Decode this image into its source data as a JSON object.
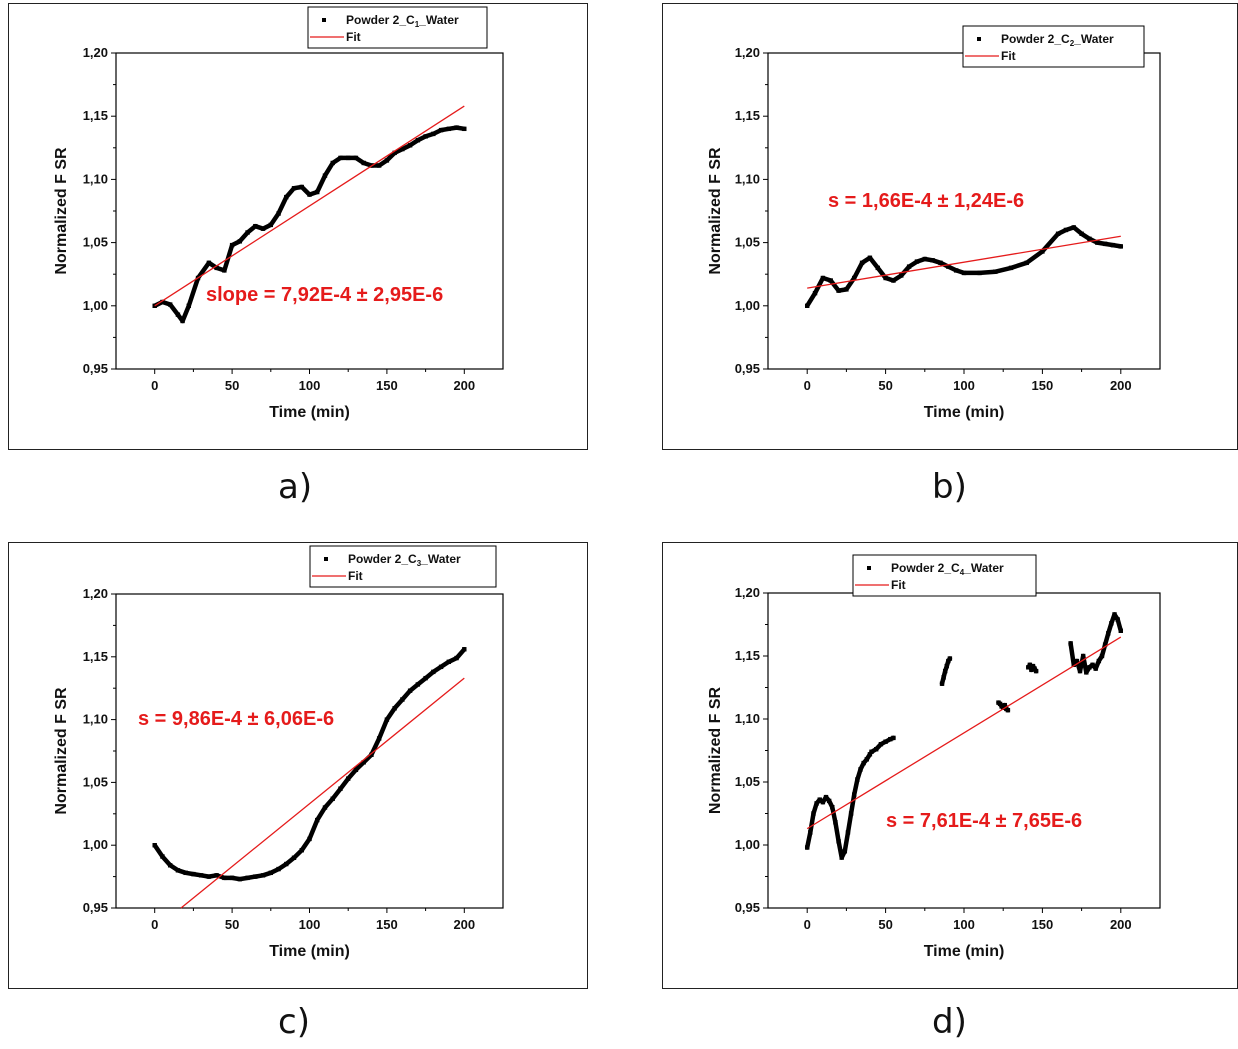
{
  "panel_labels": [
    "a)",
    "b)",
    "c)",
    "d)"
  ],
  "colors": {
    "data": "#000000",
    "fit": "#e51b1b",
    "annotation": "#e51b1b"
  },
  "chart_data": [
    {
      "type": "scatter",
      "xlabel": "Time (min)",
      "ylabel": "Normalized F SR",
      "xlim": [
        -25,
        225
      ],
      "ylim": [
        0.95,
        1.2
      ],
      "xticks": [
        "0",
        "50",
        "100",
        "150",
        "200"
      ],
      "yticks": [
        "0,95",
        "1,00",
        "1,05",
        "1,10",
        "1,15",
        "1,20"
      ],
      "legend": {
        "position": "top-right",
        "data_label": "Powder 2_C1_Water",
        "data_label_base": "Powder 2_C",
        "data_label_sub": "1",
        "data_label_tail": "_Water",
        "fit_label": "Fit"
      },
      "annotation": "slope = 7,92E-4 ± 2,95E-6",
      "fit": {
        "x": [
          0,
          200
        ],
        "y": [
          1.0,
          1.158
        ]
      },
      "series": [
        {
          "x": [
            0,
            5,
            10,
            15,
            18,
            22,
            28,
            35,
            40,
            45,
            50,
            55,
            60,
            65,
            70,
            75,
            80,
            85,
            90,
            95,
            100,
            105,
            110,
            115,
            120,
            125,
            130,
            135,
            140,
            145,
            150,
            155,
            160,
            165,
            170,
            175,
            180,
            185,
            190,
            195,
            200
          ],
          "y": [
            1.0,
            1.003,
            1.001,
            0.993,
            0.988,
            1.0,
            1.022,
            1.034,
            1.03,
            1.028,
            1.048,
            1.051,
            1.058,
            1.063,
            1.061,
            1.064,
            1.073,
            1.086,
            1.093,
            1.094,
            1.088,
            1.09,
            1.103,
            1.113,
            1.117,
            1.117,
            1.117,
            1.113,
            1.111,
            1.111,
            1.115,
            1.121,
            1.124,
            1.127,
            1.131,
            1.134,
            1.136,
            1.139,
            1.14,
            1.141,
            1.14
          ]
        }
      ]
    },
    {
      "type": "scatter",
      "xlabel": "Time (min)",
      "ylabel": "Normalized F SR",
      "xlim": [
        -25,
        225
      ],
      "ylim": [
        0.95,
        1.2
      ],
      "xticks": [
        "0",
        "50",
        "100",
        "150",
        "200"
      ],
      "yticks": [
        "0,95",
        "1,00",
        "1,05",
        "1,10",
        "1,15",
        "1,20"
      ],
      "legend": {
        "position": "top-right",
        "data_label": "Powder 2_C2_Water",
        "data_label_base": "Powder 2_C",
        "data_label_sub": "2",
        "data_label_tail": "_Water",
        "fit_label": "Fit"
      },
      "annotation": "s = 1,66E-4 ± 1,24E-6",
      "fit": {
        "x": [
          0,
          200
        ],
        "y": [
          1.014,
          1.055
        ]
      },
      "series": [
        {
          "x": [
            0,
            5,
            10,
            15,
            20,
            25,
            30,
            35,
            40,
            45,
            50,
            55,
            60,
            65,
            70,
            75,
            80,
            85,
            90,
            95,
            100,
            110,
            120,
            130,
            140,
            150,
            160,
            165,
            170,
            175,
            180,
            185,
            190,
            195,
            200
          ],
          "y": [
            1.0,
            1.01,
            1.022,
            1.02,
            1.012,
            1.013,
            1.022,
            1.034,
            1.038,
            1.03,
            1.022,
            1.02,
            1.024,
            1.031,
            1.035,
            1.037,
            1.036,
            1.034,
            1.031,
            1.028,
            1.026,
            1.026,
            1.027,
            1.03,
            1.034,
            1.043,
            1.057,
            1.06,
            1.062,
            1.057,
            1.053,
            1.05,
            1.049,
            1.048,
            1.047
          ]
        }
      ]
    },
    {
      "type": "scatter",
      "xlabel": "Time (min)",
      "ylabel": "Normalized F SR",
      "xlim": [
        -25,
        225
      ],
      "ylim": [
        0.95,
        1.2
      ],
      "xticks": [
        "0",
        "50",
        "100",
        "150",
        "200"
      ],
      "yticks": [
        "0,95",
        "1,00",
        "1,05",
        "1,10",
        "1,15",
        "1,20"
      ],
      "legend": {
        "position": "top-right",
        "data_label": "Powder 2_C3_Water",
        "data_label_base": "Powder 2_C",
        "data_label_sub": "3",
        "data_label_tail": "_Water",
        "fit_label": "Fit"
      },
      "annotation": "s = 9,86E-4 ± 6,06E-6",
      "fit": {
        "x": [
          17,
          200
        ],
        "y": [
          0.95,
          1.133
        ]
      },
      "series": [
        {
          "x": [
            0,
            5,
            10,
            15,
            20,
            25,
            30,
            35,
            40,
            45,
            50,
            55,
            60,
            65,
            70,
            75,
            80,
            85,
            90,
            95,
            100,
            105,
            110,
            115,
            120,
            125,
            130,
            135,
            140,
            145,
            150,
            155,
            160,
            165,
            170,
            175,
            180,
            185,
            190,
            195,
            200
          ],
          "y": [
            1.0,
            0.991,
            0.984,
            0.98,
            0.978,
            0.977,
            0.976,
            0.975,
            0.976,
            0.974,
            0.974,
            0.973,
            0.974,
            0.975,
            0.976,
            0.978,
            0.981,
            0.985,
            0.99,
            0.996,
            1.005,
            1.02,
            1.03,
            1.037,
            1.045,
            1.053,
            1.06,
            1.066,
            1.072,
            1.085,
            1.1,
            1.109,
            1.116,
            1.123,
            1.128,
            1.133,
            1.138,
            1.142,
            1.146,
            1.149,
            1.156
          ]
        }
      ]
    },
    {
      "type": "scatter",
      "xlabel": "Time (min)",
      "ylabel": "Normalized F SR",
      "xlim": [
        -25,
        225
      ],
      "ylim": [
        0.95,
        1.2
      ],
      "xticks": [
        "0",
        "50",
        "100",
        "150",
        "200"
      ],
      "yticks": [
        "0,95",
        "1,00",
        "1,05",
        "1,10",
        "1,15",
        "1,20"
      ],
      "legend": {
        "position": "top-left",
        "data_label": "Powder 2_C4_Water",
        "data_label_base": "Powder 2_C",
        "data_label_sub": "4",
        "data_label_tail": "_Water",
        "fit_label": "Fit"
      },
      "annotation": "s = 7,61E-4 ± 7,65E-6",
      "fit": {
        "x": [
          0,
          200
        ],
        "y": [
          1.013,
          1.165
        ]
      },
      "series": [
        {
          "x": [
            0,
            2,
            4,
            6,
            8,
            10,
            12,
            14,
            16,
            18,
            20,
            22,
            24,
            26,
            28,
            30,
            32,
            34,
            36,
            38,
            40
          ],
          "y": [
            0.998,
            1.01,
            1.025,
            1.033,
            1.036,
            1.034,
            1.038,
            1.035,
            1.03,
            1.018,
            1.003,
            0.99,
            0.995,
            1.01,
            1.025,
            1.04,
            1.052,
            1.06,
            1.065,
            1.068,
            1.072
          ]
        },
        {
          "x": [
            41,
            44,
            47,
            50,
            53,
            55
          ],
          "y": [
            1.074,
            1.076,
            1.08,
            1.082,
            1.084,
            1.085
          ]
        },
        {
          "x": [
            86,
            87,
            88,
            89,
            90,
            91
          ],
          "y": [
            1.128,
            1.133,
            1.138,
            1.142,
            1.146,
            1.148
          ]
        },
        {
          "x": [
            122,
            123,
            124,
            125,
            126,
            127,
            128
          ],
          "y": [
            1.113,
            1.112,
            1.11,
            1.109,
            1.111,
            1.108,
            1.107
          ]
        },
        {
          "x": [
            141,
            142,
            143,
            144,
            145,
            146
          ],
          "y": [
            1.141,
            1.143,
            1.139,
            1.142,
            1.14,
            1.138
          ]
        },
        {
          "x": [
            168,
            170,
            172,
            174,
            176,
            178,
            180,
            182,
            184,
            186,
            188,
            190,
            192,
            194,
            196,
            198,
            200
          ],
          "y": [
            1.16,
            1.143,
            1.146,
            1.138,
            1.15,
            1.137,
            1.141,
            1.143,
            1.14,
            1.146,
            1.15,
            1.159,
            1.168,
            1.176,
            1.183,
            1.179,
            1.17
          ]
        }
      ]
    }
  ]
}
